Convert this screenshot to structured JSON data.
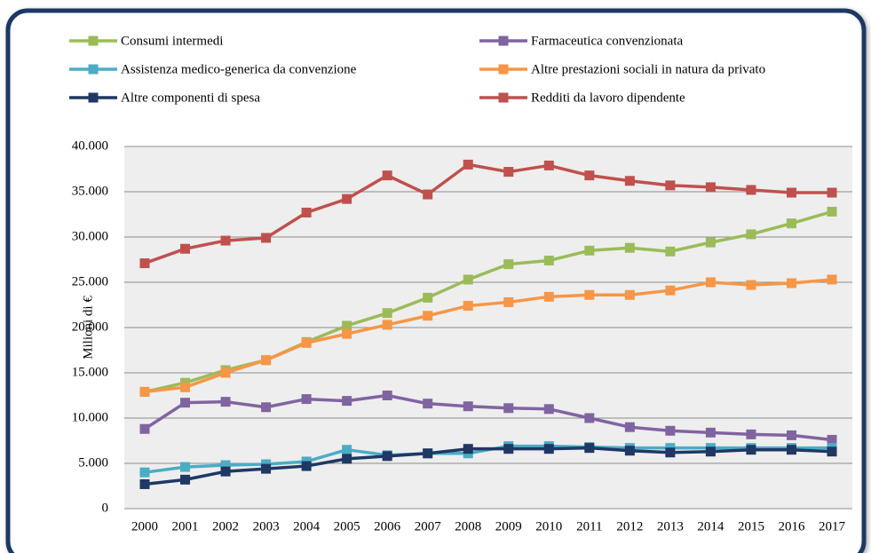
{
  "chart_data": {
    "type": "line",
    "y_label": "Milioni di €",
    "categories": [
      "2000",
      "2001",
      "2002",
      "2003",
      "2004",
      "2005",
      "2006",
      "2007",
      "2008",
      "2009",
      "2010",
      "2011",
      "2012",
      "2013",
      "2014",
      "2015",
      "2016",
      "2017"
    ],
    "ylim": [
      0,
      40000
    ],
    "yticks": [
      0,
      {
        "value": 5000,
        "label": "5.000"
      },
      {
        "value": 10000,
        "label": "10.000"
      },
      {
        "value": 15000,
        "label": "15.000"
      },
      {
        "value": 20000,
        "label": "20.000"
      },
      {
        "value": 25000,
        "label": "25.000"
      },
      {
        "value": 30000,
        "label": "30.000"
      },
      {
        "value": 35000,
        "label": "35.000"
      },
      {
        "value": 40000,
        "label": "40.000"
      }
    ],
    "grid": true,
    "legend": "top",
    "series": [
      {
        "name": "Consumi intermedi",
        "color": "#9bbb59",
        "values": [
          12900,
          13900,
          15300,
          16400,
          18400,
          20200,
          21600,
          23300,
          25300,
          27000,
          27400,
          28500,
          28800,
          28400,
          29400,
          30300,
          31500,
          32800
        ]
      },
      {
        "name": "Farmaceutica convenzionata",
        "color": "#8064a2",
        "values": [
          8800,
          11700,
          11800,
          11200,
          12100,
          11900,
          12500,
          11600,
          11300,
          11100,
          11000,
          10000,
          9000,
          8600,
          8400,
          8200,
          8100,
          7600
        ]
      },
      {
        "name": "Assistenza medico-generica da convenzione",
        "color": "#4bacc6",
        "values": [
          4000,
          4600,
          4800,
          4900,
          5200,
          6500,
          5900,
          6100,
          6100,
          6900,
          6900,
          6800,
          6700,
          6700,
          6700,
          6700,
          6700,
          6700
        ]
      },
      {
        "name": "Altre prestazioni sociali in natura da privato",
        "color": "#f79646",
        "values": [
          12900,
          13400,
          15000,
          16400,
          18300,
          19300,
          20300,
          21300,
          22400,
          22800,
          23400,
          23600,
          23600,
          24100,
          25000,
          24700,
          24900,
          25300
        ]
      },
      {
        "name": "Altre componenti di spesa",
        "color": "#1f3864",
        "values": [
          2700,
          3200,
          4100,
          4400,
          4700,
          5500,
          5800,
          6100,
          6600,
          6600,
          6600,
          6700,
          6400,
          6200,
          6300,
          6500,
          6500,
          6300
        ]
      },
      {
        "name": "Redditi da lavoro dipendente",
        "color": "#c0504d",
        "values": [
          27100,
          28700,
          29600,
          29900,
          32700,
          34200,
          36800,
          34700,
          38000,
          37200,
          37900,
          36800,
          36200,
          35700,
          35500,
          35200,
          34900,
          34900
        ]
      }
    ]
  }
}
